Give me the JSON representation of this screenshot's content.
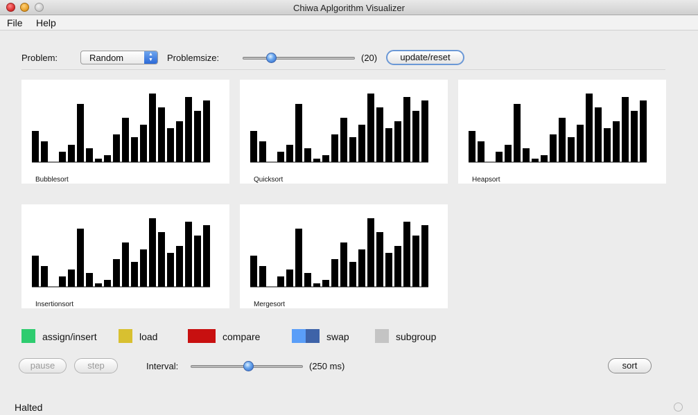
{
  "window": {
    "title": "Chiwa Aplgorithm Visualizer"
  },
  "menu": {
    "file": "File",
    "help": "Help"
  },
  "controls": {
    "problem_label": "Problem:",
    "problem_value": "Random",
    "problemsize_label": "Problemsize:",
    "problemsize_value": "(20)",
    "update_button": "update/reset"
  },
  "bars": [
    45,
    30,
    0,
    15,
    25,
    84,
    20,
    5,
    10,
    40,
    64,
    36,
    54,
    99,
    79,
    49,
    59,
    94,
    74,
    89
  ],
  "panels": [
    {
      "label": "Bubblesort"
    },
    {
      "label": "Quicksort"
    },
    {
      "label": "Heapsort"
    },
    {
      "label": "Insertionsort"
    },
    {
      "label": "Mergesort"
    }
  ],
  "legend": {
    "assign": {
      "label": "assign/insert",
      "color": "#2ecc6f"
    },
    "load": {
      "label": "load",
      "color": "#d8c030"
    },
    "compare": {
      "label": "compare",
      "color": "#c81010"
    },
    "swap": {
      "label": "swap",
      "color1": "#5a9ef8",
      "color2": "#3e63a8"
    },
    "subgroup": {
      "label": "subgroup",
      "color": "#c4c4c4"
    }
  },
  "bottom": {
    "pause_button": "pause",
    "step_button": "step",
    "interval_label": "Interval:",
    "interval_value": "(250 ms)",
    "sort_button": "sort"
  },
  "status": {
    "text": "Halted"
  }
}
